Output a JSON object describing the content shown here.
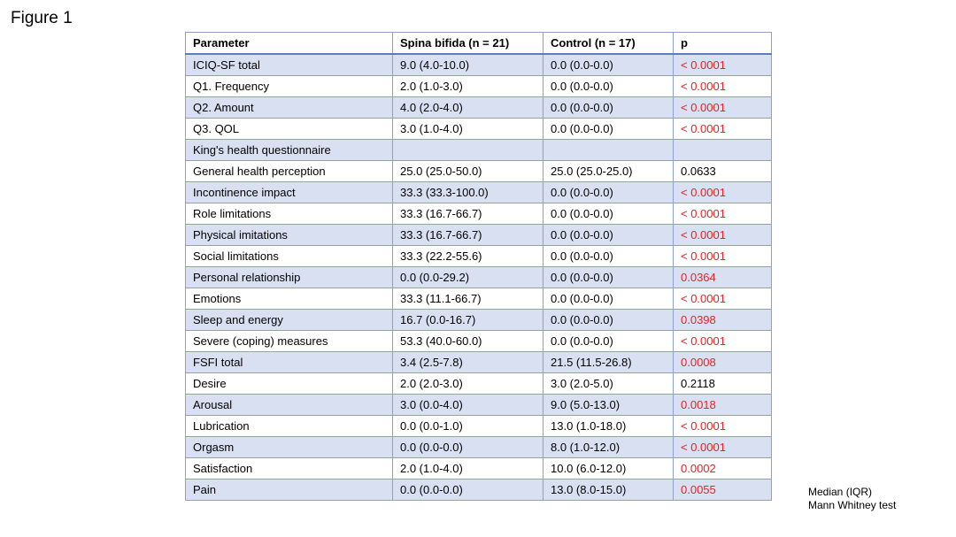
{
  "figure_title": "Figure 1",
  "table": {
    "headers": [
      "Parameter",
      "Spina bifida (n = 21)",
      "Control (n = 17)",
      "p"
    ],
    "rows": [
      {
        "parameter": "ICIQ-SF total",
        "spina_bifida": "9.0 (4.0-10.0)",
        "control": "0.0 (0.0-0.0)",
        "p": "< 0.0001",
        "indent": 0,
        "significant": true
      },
      {
        "parameter": "Q1. Frequency",
        "spina_bifida": "2.0 (1.0-3.0)",
        "control": "0.0 (0.0-0.0)",
        "p": "< 0.0001",
        "indent": 1,
        "significant": true
      },
      {
        "parameter": "Q2. Amount",
        "spina_bifida": "4.0 (2.0-4.0)",
        "control": "0.0 (0.0-0.0)",
        "p": "< 0.0001",
        "indent": 1,
        "significant": true
      },
      {
        "parameter": "Q3. QOL",
        "spina_bifida": "3.0 (1.0-4.0)",
        "control": "0.0 (0.0-0.0)",
        "p": "< 0.0001",
        "indent": 1,
        "significant": true
      },
      {
        "parameter": "King's health questionnaire",
        "spina_bifida": "",
        "control": "",
        "p": "",
        "indent": 0,
        "significant": false
      },
      {
        "parameter": "General health perception",
        "spina_bifida": "25.0 (25.0-50.0)",
        "control": "25.0 (25.0-25.0)",
        "p": "0.0633",
        "indent": 2,
        "significant": false
      },
      {
        "parameter": "Incontinence impact",
        "spina_bifida": "33.3 (33.3-100.0)",
        "control": "0.0 (0.0-0.0)",
        "p": "< 0.0001",
        "indent": 2,
        "significant": true
      },
      {
        "parameter": "Role limitations",
        "spina_bifida": "33.3 (16.7-66.7)",
        "control": "0.0 (0.0-0.0)",
        "p": "< 0.0001",
        "indent": 2,
        "significant": true
      },
      {
        "parameter": "Physical imitations",
        "spina_bifida": "33.3 (16.7-66.7)",
        "control": "0.0 (0.0-0.0)",
        "p": "< 0.0001",
        "indent": 2,
        "significant": true
      },
      {
        "parameter": "Social limitations",
        "spina_bifida": "33.3 (22.2-55.6)",
        "control": "0.0 (0.0-0.0)",
        "p": "< 0.0001",
        "indent": 2,
        "significant": true
      },
      {
        "parameter": "Personal relationship",
        "spina_bifida": "0.0 (0.0-29.2)",
        "control": "0.0 (0.0-0.0)",
        "p": "0.0364",
        "indent": 2,
        "significant": true
      },
      {
        "parameter": "Emotions",
        "spina_bifida": "33.3 (11.1-66.7)",
        "control": "0.0 (0.0-0.0)",
        "p": "< 0.0001",
        "indent": 2,
        "significant": true
      },
      {
        "parameter": "Sleep and energy",
        "spina_bifida": "16.7 (0.0-16.7)",
        "control": "0.0 (0.0-0.0)",
        "p": "0.0398",
        "indent": 2,
        "significant": true
      },
      {
        "parameter": "Severe (coping) measures",
        "spina_bifida": "53.3 (40.0-60.0)",
        "control": "0.0 (0.0-0.0)",
        "p": "< 0.0001",
        "indent": 2,
        "significant": true
      },
      {
        "parameter": "FSFI total",
        "spina_bifida": "3.4 (2.5-7.8)",
        "control": "21.5 (11.5-26.8)",
        "p": "0.0008",
        "indent": 0,
        "significant": true
      },
      {
        "parameter": "Desire",
        "spina_bifida": "2.0 (2.0-3.0)",
        "control": "3.0 (2.0-5.0)",
        "p": "0.2118",
        "indent": 2,
        "significant": false
      },
      {
        "parameter": "Arousal",
        "spina_bifida": "3.0 (0.0-4.0)",
        "control": "9.0 (5.0-13.0)",
        "p": "0.0018",
        "indent": 2,
        "significant": true
      },
      {
        "parameter": "Lubrication",
        "spina_bifida": "0.0 (0.0-1.0)",
        "control": "13.0 (1.0-18.0)",
        "p": "< 0.0001",
        "indent": 2,
        "significant": true
      },
      {
        "parameter": "Orgasm",
        "spina_bifida": "0.0 (0.0-0.0)",
        "control": "8.0 (1.0-12.0)",
        "p": "< 0.0001",
        "indent": 2,
        "significant": true
      },
      {
        "parameter": "Satisfaction",
        "spina_bifida": "2.0 (1.0-4.0)",
        "control": "10.0 (6.0-12.0)",
        "p": "0.0002",
        "indent": 2,
        "significant": true
      },
      {
        "parameter": "Pain",
        "spina_bifida": "0.0 (0.0-0.0)",
        "control": "13.0 (8.0-15.0)",
        "p": "0.0055",
        "indent": 2,
        "significant": true
      }
    ]
  },
  "notes": [
    "Median (IQR)",
    "Mann Whitney test"
  ],
  "colors": {
    "row_shading": "#d9e0f1",
    "border": "#8ea0c8",
    "header_rule": "#5b7cc0",
    "significant_p": "#e8202a"
  }
}
